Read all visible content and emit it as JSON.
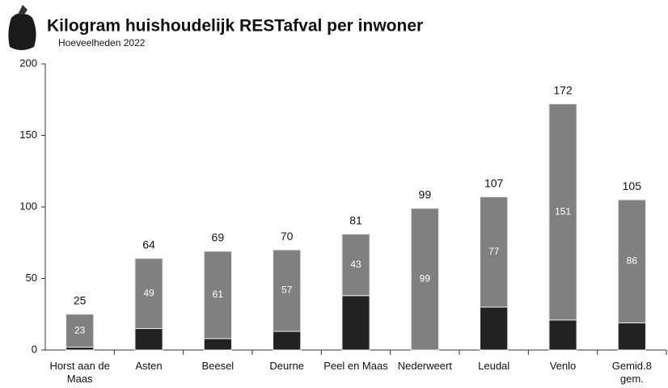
{
  "chart_data": {
    "type": "stacked_bar",
    "title": "Kilogram huishoudelijk RESTafval per inwoner",
    "subtitle": "Hoeveelheden 2022",
    "categories": [
      "Horst aan de Maas",
      "Asten",
      "Beesel",
      "Deurne",
      "Peel en Maas",
      "Nederweert",
      "Leudal",
      "Venlo",
      "Gemid.8 gem."
    ],
    "series": [
      {
        "color": "#222222",
        "values": [
          2,
          15,
          8,
          13,
          38,
          0,
          30,
          21,
          19
        ]
      },
      {
        "color": "#808080",
        "values": [
          23,
          49,
          61,
          57,
          43,
          99,
          77,
          151,
          86
        ]
      }
    ],
    "totals": [
      25,
      64,
      69,
      70,
      81,
      99,
      107,
      172,
      105
    ],
    "ylim": [
      0,
      200
    ],
    "yticks": [
      0,
      50,
      100,
      150,
      200
    ],
    "grid": false
  }
}
